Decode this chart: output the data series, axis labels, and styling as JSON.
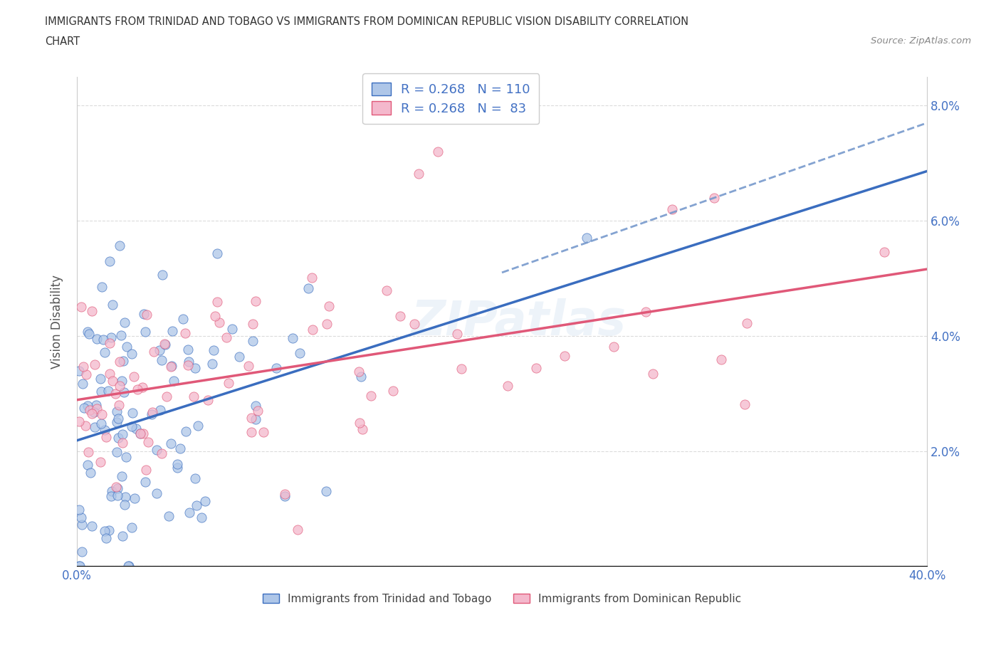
{
  "title_line1": "IMMIGRANTS FROM TRINIDAD AND TOBAGO VS IMMIGRANTS FROM DOMINICAN REPUBLIC VISION DISABILITY CORRELATION",
  "title_line2": "CHART",
  "source": "Source: ZipAtlas.com",
  "ylabel": "Vision Disability",
  "xlim": [
    0.0,
    0.4
  ],
  "ylim": [
    0.0,
    0.085
  ],
  "R_blue": 0.268,
  "N_blue": 110,
  "R_pink": 0.268,
  "N_pink": 83,
  "color_blue": "#AEC6E8",
  "color_pink": "#F4B8CC",
  "line_color_blue": "#3A6DBF",
  "line_color_pink": "#E05878",
  "line_color_dashed": "#7799CC",
  "background_color": "#FFFFFF",
  "grid_color": "#CCCCCC",
  "legend_label_blue": "Immigrants from Trinidad and Tobago",
  "legend_label_pink": "Immigrants from Dominican Republic"
}
